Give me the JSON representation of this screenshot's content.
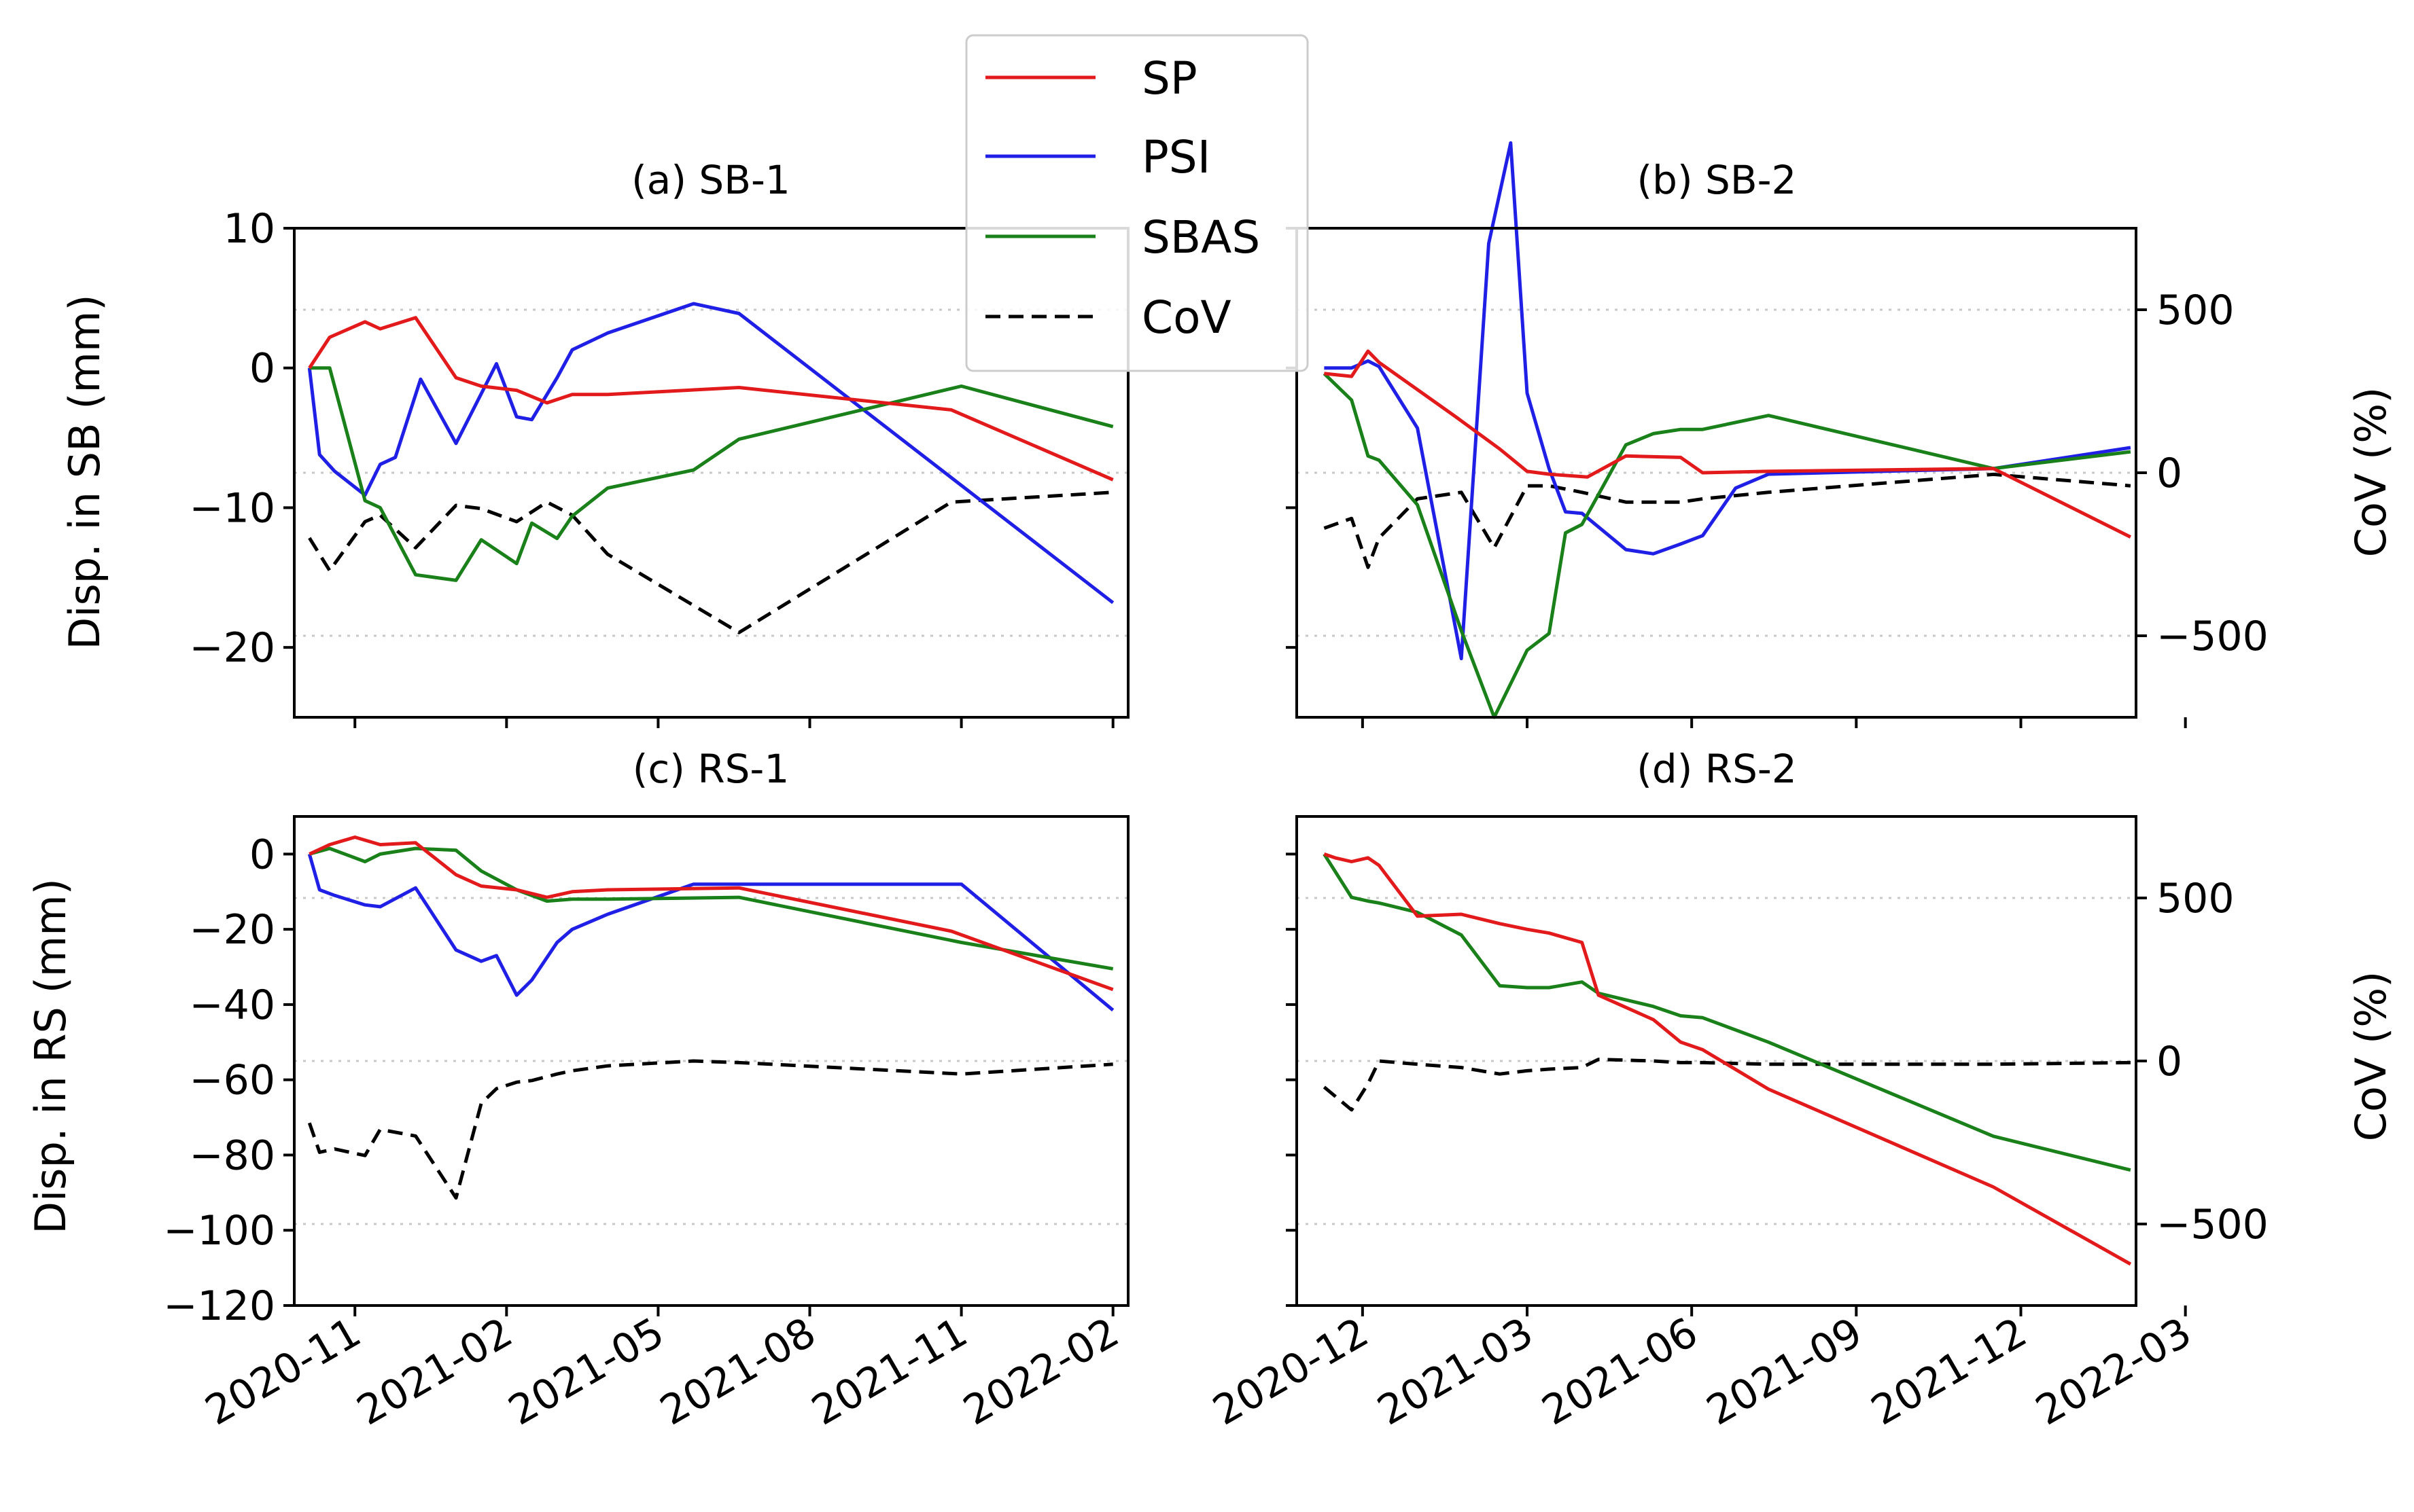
{
  "chart_data": {
    "type": "line",
    "legend": {
      "placement": "top-center",
      "entries": [
        {
          "name": "SP",
          "color": "#e31a1c",
          "style": "solid"
        },
        {
          "name": "PSI",
          "color": "#1f1fe6",
          "style": "solid"
        },
        {
          "name": "SBAS",
          "color": "#1a801a",
          "style": "solid"
        },
        {
          "name": "CoV",
          "color": "#000000",
          "style": "dashed"
        }
      ]
    },
    "colors": {
      "SP": "#e31a1c",
      "PSI": "#1f1fe6",
      "SBAS": "#1a801a",
      "CoV": "#000000",
      "grid": "#c8c8c8"
    },
    "x_left": {
      "xlim": [
        -0.2,
        16.3
      ],
      "ticks": [
        1,
        4,
        7,
        10,
        13,
        16
      ],
      "tick_labels": [
        "2020-11",
        "2021-02",
        "2021-05",
        "2021-08",
        "2021-11",
        "2022-02"
      ]
    },
    "x_right": {
      "xlim": [
        -0.2,
        15.1
      ],
      "ticks": [
        1,
        4,
        7,
        10,
        13,
        16
      ],
      "tick_labels": [
        "2020-12",
        "2021-03",
        "2021-06",
        "2021-09",
        "2021-12",
        "2022-03"
      ]
    },
    "rows": [
      {
        "ylabel": "Disp. in SB (mm)",
        "ylabel_right": "CoV (%)",
        "ylim": [
          -25,
          10
        ],
        "yticks": [
          10,
          0,
          -10,
          -20
        ],
        "ytick_labels": [
          "10",
          "0",
          "−10",
          "−20"
        ],
        "cov_ylim": [
          -750,
          750
        ],
        "cov_ticks": [
          500,
          0,
          -500
        ],
        "cov_tick_labels": [
          "500",
          "0",
          "−500"
        ]
      },
      {
        "ylabel": "Disp. in RS (mm)",
        "ylabel_right": "CoV (%)",
        "ylim": [
          -120,
          10
        ],
        "yticks": [
          0,
          -20,
          -40,
          -60,
          -80,
          -100,
          -120
        ],
        "ytick_labels": [
          "0",
          "−20",
          "−40",
          "−60",
          "−80",
          "−100",
          "−120"
        ],
        "cov_ylim": [
          -750,
          750
        ],
        "cov_ticks": [
          500,
          0,
          -500
        ],
        "cov_tick_labels": [
          "500",
          "0",
          "−500"
        ]
      }
    ],
    "panels": [
      {
        "id": "a",
        "title": "(a) SB-1",
        "row": 0,
        "col": 0,
        "series": {
          "SP": {
            "x": [
              0.1,
              0.5,
              1.2,
              1.5,
              2.2,
              3.0,
              3.5,
              4.2,
              4.8,
              5.3,
              6.0,
              8.6,
              12.8,
              16.0
            ],
            "y": [
              0,
              2.2,
              3.3,
              2.8,
              3.6,
              -0.7,
              -1.3,
              -1.6,
              -2.5,
              -1.9,
              -1.9,
              -1.4,
              -3.0,
              -8.0
            ]
          },
          "PSI": {
            "x": [
              0.1,
              0.3,
              0.6,
              1.2,
              1.5,
              1.8,
              2.3,
              3.0,
              3.8,
              4.2,
              4.5,
              5.0,
              5.3,
              6.0,
              7.7,
              8.6,
              16.0
            ],
            "y": [
              0,
              -6.2,
              -7.4,
              -9.1,
              -6.9,
              -6.4,
              -0.8,
              -5.4,
              0.3,
              -3.5,
              -3.7,
              -0.7,
              1.3,
              2.5,
              4.6,
              3.9,
              -16.8
            ]
          },
          "SBAS": {
            "x": [
              0.1,
              0.5,
              1.2,
              1.5,
              2.2,
              3.0,
              3.5,
              4.2,
              4.5,
              5.0,
              5.3,
              6.0,
              7.7,
              8.6,
              13.0,
              16.0
            ],
            "y": [
              0,
              0,
              -9.5,
              -10.0,
              -14.8,
              -15.2,
              -12.3,
              -14.0,
              -11.1,
              -12.2,
              -10.6,
              -8.6,
              -7.3,
              -5.1,
              -1.3,
              -4.2
            ]
          },
          "CoV": {
            "x": [
              0.1,
              0.5,
              1.2,
              1.5,
              2.2,
              3.0,
              3.5,
              4.2,
              4.8,
              5.3,
              6.0,
              8.6,
              12.8,
              16.0
            ],
            "y": [
              -200,
              -300,
              -150,
              -130,
              -230,
              -100,
              -110,
              -150,
              -90,
              -130,
              -250,
              -490,
              -90,
              -60
            ]
          }
        }
      },
      {
        "id": "b",
        "title": "(b) SB-2",
        "row": 0,
        "col": 1,
        "series": {
          "SP": {
            "x": [
              0.3,
              0.8,
              1.1,
              1.3,
              2.7,
              3.5,
              4.0,
              4.4,
              5.1,
              5.8,
              6.8,
              7.2,
              8.4,
              12.5,
              15.0
            ],
            "y": [
              -0.4,
              -0.6,
              1.2,
              0.4,
              -3.5,
              -5.8,
              -7.4,
              -7.6,
              -7.8,
              -6.3,
              -6.4,
              -7.5,
              -7.4,
              -7.2,
              -12.1
            ]
          },
          "PSI": {
            "x": [
              0.3,
              0.8,
              1.1,
              1.3,
              2.0,
              2.8,
              3.3,
              3.7,
              4.0,
              4.4,
              4.7,
              5.0,
              5.8,
              6.3,
              6.8,
              7.2,
              7.8,
              8.4,
              12.5,
              15.0
            ],
            "y": [
              0,
              0,
              0.5,
              0.1,
              -4.3,
              -20.8,
              8.9,
              16.1,
              -1.8,
              -7.2,
              -10.3,
              -10.4,
              -13.0,
              -13.3,
              -12.6,
              -12.0,
              -8.6,
              -7.6,
              -7.2,
              -5.7
            ]
          },
          "SBAS": {
            "x": [
              0.3,
              0.8,
              1.1,
              1.3,
              2.0,
              2.8,
              3.4,
              4.0,
              4.4,
              4.7,
              5.0,
              5.8,
              6.3,
              6.8,
              7.2,
              8.4,
              12.5,
              15.0
            ],
            "y": [
              -0.4,
              -2.3,
              -6.3,
              -6.6,
              -9.8,
              -18.8,
              -25.0,
              -20.2,
              -19.0,
              -11.8,
              -11.2,
              -5.5,
              -4.7,
              -4.4,
              -4.4,
              -3.4,
              -7.2,
              -6.0
            ]
          },
          "CoV": {
            "x": [
              0.3,
              0.8,
              1.1,
              1.3,
              2.0,
              2.8,
              3.4,
              4.0,
              4.4,
              5.0,
              5.8,
              6.3,
              6.8,
              7.2,
              8.4,
              12.5,
              15.0
            ],
            "y": [
              -170,
              -140,
              -290,
              -200,
              -80,
              -60,
              -230,
              -40,
              -40,
              -60,
              -90,
              -90,
              -90,
              -80,
              -60,
              -5,
              -40
            ]
          }
        }
      },
      {
        "id": "c",
        "title": "(c) RS-1",
        "row": 1,
        "col": 0,
        "series": {
          "SP": {
            "x": [
              0.1,
              0.5,
              1.0,
              1.5,
              2.2,
              3.0,
              3.5,
              4.2,
              4.8,
              5.3,
              6.0,
              8.6,
              12.8,
              16.0
            ],
            "y": [
              0,
              2.5,
              4.5,
              2.5,
              3.0,
              -5.5,
              -8.5,
              -9.5,
              -11.5,
              -10.0,
              -9.5,
              -9.0,
              -20.5,
              -36.0
            ]
          },
          "PSI": {
            "x": [
              0.1,
              0.3,
              0.6,
              1.2,
              1.5,
              2.2,
              3.0,
              3.5,
              3.8,
              4.2,
              4.5,
              5.0,
              5.3,
              6.0,
              7.7,
              8.6,
              13.0,
              16.0
            ],
            "y": [
              0,
              -9.5,
              -11.0,
              -13.5,
              -14.0,
              -9.0,
              -25.5,
              -28.5,
              -27.0,
              -37.5,
              -33.5,
              -23.5,
              -20.0,
              -16.0,
              -8.0,
              -8.0,
              -8.0,
              -41.5
            ]
          },
          "SBAS": {
            "x": [
              0.1,
              0.5,
              1.2,
              1.5,
              2.2,
              3.0,
              3.5,
              4.2,
              4.8,
              5.3,
              6.0,
              8.6,
              13.0,
              16.0
            ],
            "y": [
              0,
              1.5,
              -2.0,
              0,
              1.5,
              1.0,
              -4.5,
              -9.5,
              -12.5,
              -12.0,
              -12.0,
              -11.5,
              -23.5,
              -30.5
            ]
          },
          "CoV": {
            "x": [
              0.1,
              0.3,
              0.6,
              1.2,
              1.5,
              2.2,
              3.0,
              3.5,
              3.8,
              4.2,
              4.5,
              5.0,
              5.3,
              6.0,
              7.7,
              8.6,
              13.0,
              16.0
            ],
            "y": [
              -190,
              -280,
              -270,
              -290,
              -210,
              -230,
              -420,
              -130,
              -85,
              -65,
              -60,
              -40,
              -30,
              -15,
              0,
              -5,
              -40,
              -10
            ]
          }
        }
      },
      {
        "id": "d",
        "title": "(d) RS-2",
        "row": 1,
        "col": 1,
        "series": {
          "SP": {
            "x": [
              0.3,
              0.5,
              0.8,
              1.1,
              1.3,
              2.0,
              2.8,
              3.5,
              4.0,
              4.4,
              5.0,
              5.3,
              6.3,
              6.8,
              7.2,
              8.4,
              12.5,
              15.0
            ],
            "y": [
              0,
              -1.0,
              -2.0,
              -1.0,
              -3.0,
              -16.5,
              -16.0,
              -18.5,
              -20.0,
              -21.0,
              -23.5,
              -37.5,
              -44.0,
              -50.0,
              -52.0,
              -62.5,
              -88.5,
              -109.0
            ]
          },
          "SBAS": {
            "x": [
              0.3,
              0.8,
              1.1,
              1.3,
              2.0,
              2.8,
              3.5,
              4.0,
              4.4,
              5.0,
              5.3,
              6.3,
              6.8,
              7.2,
              8.4,
              12.5,
              15.0
            ],
            "y": [
              0,
              -11.5,
              -12.5,
              -13.0,
              -15.5,
              -21.5,
              -35.0,
              -35.5,
              -35.5,
              -34.0,
              -37.0,
              -40.5,
              -43.0,
              -43.5,
              -50.0,
              -75.0,
              -84.0
            ]
          },
          "CoV": {
            "x": [
              0.3,
              0.8,
              1.1,
              1.3,
              2.0,
              2.8,
              3.5,
              4.0,
              4.4,
              5.0,
              5.3,
              6.3,
              6.8,
              7.2,
              8.4,
              12.5,
              15.0
            ],
            "y": [
              -80,
              -150,
              -70,
              0,
              -10,
              -20,
              -40,
              -30,
              -25,
              -20,
              5,
              0,
              -5,
              -5,
              -10,
              -10,
              -5
            ]
          }
        }
      }
    ]
  }
}
